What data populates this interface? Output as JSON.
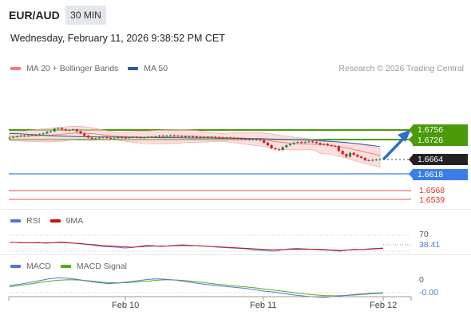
{
  "header": {
    "symbol": "EUR/AUD",
    "interval": "30 MIN",
    "datetime": "Wednesday, February 11, 2026 9:38:52 PM CET"
  },
  "legend_main": [
    {
      "label": "MA 20 + Bollinger Bands",
      "color": "#f08080"
    },
    {
      "label": "MA 50",
      "color": "#2c5aa0"
    }
  ],
  "copyright": "Research © 2026 Trading Central",
  "legend_rsi": [
    {
      "label": "RSI",
      "color": "#5577cc"
    },
    {
      "label": "9MA",
      "color": "#cc1111"
    }
  ],
  "legend_macd": [
    {
      "label": "MACD",
      "color": "#5577cc"
    },
    {
      "label": "MACD Signal",
      "color": "#55aa22"
    }
  ],
  "colors": {
    "resistance": "#4a9a0a",
    "support_blue": "#3b7de6",
    "support_red": "#e85050",
    "current": "#222222",
    "arrow": "#2d6fc4",
    "candle_up": "#2a8a2a",
    "candle_down": "#cc2222"
  },
  "chart_data": [
    {
      "type": "candlestick",
      "ylim": [
        1.648,
        1.679
      ],
      "x_labels": [
        "Feb 10",
        "Feb 11",
        "Feb 12"
      ],
      "close_path": [
        1.6732,
        1.6734,
        1.6736,
        1.6738,
        1.6737,
        1.6739,
        1.6741,
        1.674,
        1.6743,
        1.6745,
        1.675,
        1.6752,
        1.676,
        1.6762,
        1.6758,
        1.6755,
        1.6756,
        1.6758,
        1.6752,
        1.6745,
        1.6738,
        1.6732,
        1.6728,
        1.673,
        1.6732,
        1.6734,
        1.6731,
        1.6729,
        1.673,
        1.6733,
        1.6732,
        1.6731,
        1.6733,
        1.6734,
        1.6733,
        1.6732,
        1.6733,
        1.6735,
        1.6734,
        1.6736,
        1.6738,
        1.6737,
        1.6738,
        1.6739,
        1.6738,
        1.6737,
        1.6736,
        1.6735,
        1.6736,
        1.6735,
        1.6734,
        1.6733,
        1.6734,
        1.6733,
        1.6734,
        1.6733,
        1.6732,
        1.6731,
        1.6732,
        1.6731,
        1.673,
        1.6729,
        1.6728,
        1.6727,
        1.6726,
        1.6727,
        1.6726,
        1.6724,
        1.6716,
        1.6708,
        1.6698,
        1.6695,
        1.6693,
        1.6702,
        1.6708,
        1.6712,
        1.6716,
        1.6718,
        1.6716,
        1.6718,
        1.672,
        1.6718,
        1.6715,
        1.671,
        1.6712,
        1.6708,
        1.6706,
        1.6705,
        1.669,
        1.668,
        1.6672,
        1.6684,
        1.6678,
        1.6672,
        1.6668,
        1.6661,
        1.666,
        1.6662,
        1.6663,
        1.6664
      ],
      "ma20": [
        1.6735,
        1.6736,
        1.6737,
        1.6738,
        1.6739,
        1.674,
        1.6742,
        1.6745,
        1.6747,
        1.6746,
        1.6744,
        1.6741,
        1.6738,
        1.6736,
        1.6735,
        1.6734,
        1.6733,
        1.6733,
        1.6734,
        1.6735,
        1.6736,
        1.6737,
        1.6736,
        1.6735,
        1.6734,
        1.6733,
        1.6732,
        1.6731,
        1.673,
        1.6728,
        1.6726,
        1.6722,
        1.6718,
        1.6715,
        1.6713,
        1.6712,
        1.6711,
        1.671,
        1.6708,
        1.6704,
        1.67,
        1.6694,
        1.6688,
        1.6682,
        1.6676
      ],
      "ma50": [
        1.6745,
        1.6744,
        1.6742,
        1.674,
        1.6738,
        1.6737,
        1.6736,
        1.6735,
        1.6735,
        1.6734,
        1.6734,
        1.6734,
        1.6733,
        1.6733,
        1.6733,
        1.6732,
        1.6732,
        1.6732,
        1.6731,
        1.6731,
        1.6731,
        1.673,
        1.673,
        1.673,
        1.6729,
        1.6729,
        1.6728,
        1.6727,
        1.6726,
        1.6725,
        1.6724,
        1.6722,
        1.672,
        1.6718,
        1.6715,
        1.6712,
        1.6708,
        1.6704
      ],
      "levels": [
        {
          "value": "1.6756",
          "kind": "resistance"
        },
        {
          "value": "1.6726",
          "kind": "resistance"
        },
        {
          "value": "1.6664",
          "kind": "current"
        },
        {
          "value": "1.6618",
          "kind": "support"
        },
        {
          "value": "1.6568",
          "kind": "support-red"
        },
        {
          "value": "1.6539",
          "kind": "support-red"
        }
      ]
    },
    {
      "type": "line",
      "name": "RSI",
      "level_label": "70",
      "current_label": "38.41",
      "ylim": [
        0,
        100
      ],
      "rsi": [
        52,
        52,
        51,
        51,
        52,
        50,
        51,
        53,
        52,
        50,
        48,
        47,
        44,
        42,
        41,
        40,
        38,
        39,
        42,
        45,
        44,
        42,
        43,
        45,
        46,
        45,
        44,
        43,
        42,
        40,
        39,
        38,
        37,
        36,
        33,
        32,
        31,
        30,
        34,
        36,
        37,
        36,
        35,
        34,
        33,
        32,
        30,
        33,
        35,
        34,
        36,
        37,
        38
      ],
      "ma9": [
        52,
        52,
        51,
        51,
        51,
        51,
        51,
        52,
        51,
        50,
        49,
        47,
        46,
        44,
        43,
        42,
        41,
        40,
        41,
        42,
        43,
        43,
        43,
        44,
        44,
        44,
        44,
        43,
        42,
        41,
        40,
        39,
        38,
        37,
        36,
        35,
        34,
        34,
        34,
        35,
        35,
        35,
        35,
        35,
        34,
        33,
        32,
        33,
        34,
        34,
        35,
        36,
        37
      ]
    },
    {
      "type": "line",
      "name": "MACD",
      "level_label": "0",
      "current_label": "-0.00",
      "macd": [
        0.3,
        0.35,
        0.42,
        0.5,
        0.58,
        0.62,
        0.6,
        0.55,
        0.48,
        0.42,
        0.38,
        0.4,
        0.45,
        0.5,
        0.55,
        0.58,
        0.56,
        0.52,
        0.46,
        0.4,
        0.34,
        0.3,
        0.26,
        0.22,
        0.18,
        0.12,
        0.06,
        0.02,
        -0.04,
        -0.1,
        -0.14,
        -0.18,
        -0.2,
        -0.16,
        -0.12,
        -0.08,
        -0.05,
        -0.02,
        0.0
      ],
      "signal": [
        0.25,
        0.3,
        0.36,
        0.42,
        0.48,
        0.52,
        0.54,
        0.53,
        0.5,
        0.46,
        0.42,
        0.41,
        0.42,
        0.45,
        0.48,
        0.52,
        0.54,
        0.53,
        0.5,
        0.46,
        0.41,
        0.36,
        0.32,
        0.28,
        0.24,
        0.2,
        0.15,
        0.1,
        0.05,
        0.0,
        -0.05,
        -0.09,
        -0.12,
        -0.13,
        -0.12,
        -0.1,
        -0.07,
        -0.04,
        -0.02
      ]
    }
  ]
}
